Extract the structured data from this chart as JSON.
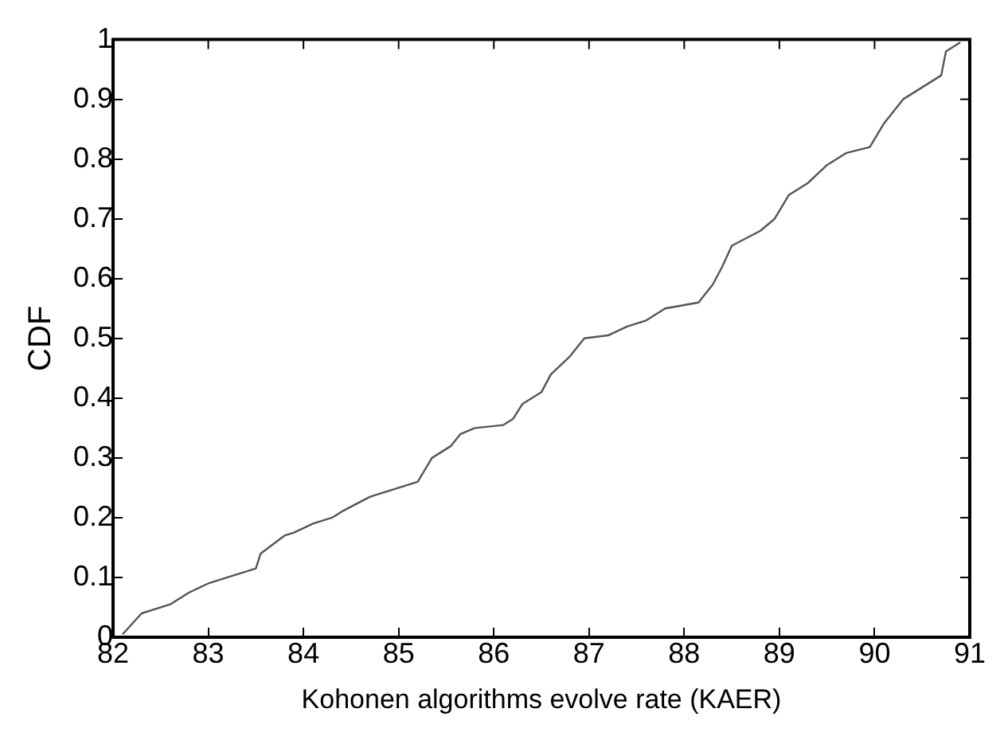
{
  "chart_data": {
    "type": "line",
    "xlabel": "Kohonen algorithms evolve rate (KAER)",
    "ylabel": "CDF",
    "xlim": [
      82,
      91
    ],
    "xticks": [
      82,
      83,
      84,
      85,
      86,
      87,
      88,
      89,
      90,
      91
    ],
    "ylim": [
      0,
      1
    ],
    "yticks": [
      0,
      0.1,
      0.2,
      0.3,
      0.4,
      0.5,
      0.6,
      0.7,
      0.8,
      0.9,
      1
    ],
    "grid": false,
    "legend": false,
    "marker": "none",
    "line_style": "solid",
    "series": [
      {
        "color": "#555555",
        "x": [
          82.1,
          82.3,
          82.6,
          82.8,
          83.0,
          83.4,
          83.5,
          83.55,
          83.8,
          83.9,
          84.1,
          84.3,
          84.4,
          84.7,
          85.0,
          85.2,
          85.35,
          85.55,
          85.65,
          85.8,
          86.1,
          86.2,
          86.3,
          86.5,
          86.6,
          86.8,
          86.95,
          87.2,
          87.4,
          87.6,
          87.8,
          88.15,
          88.3,
          88.4,
          88.5,
          88.8,
          88.95,
          89.1,
          89.3,
          89.5,
          89.7,
          89.95,
          90.1,
          90.3,
          90.5,
          90.7,
          90.75,
          90.9
        ],
        "values": [
          0.005,
          0.04,
          0.055,
          0.075,
          0.09,
          0.11,
          0.115,
          0.14,
          0.17,
          0.175,
          0.19,
          0.2,
          0.21,
          0.235,
          0.25,
          0.26,
          0.3,
          0.32,
          0.34,
          0.35,
          0.355,
          0.365,
          0.39,
          0.41,
          0.44,
          0.47,
          0.5,
          0.505,
          0.52,
          0.53,
          0.55,
          0.56,
          0.59,
          0.62,
          0.655,
          0.68,
          0.7,
          0.74,
          0.76,
          0.79,
          0.81,
          0.82,
          0.86,
          0.9,
          0.92,
          0.94,
          0.98,
          0.995
        ]
      }
    ]
  }
}
